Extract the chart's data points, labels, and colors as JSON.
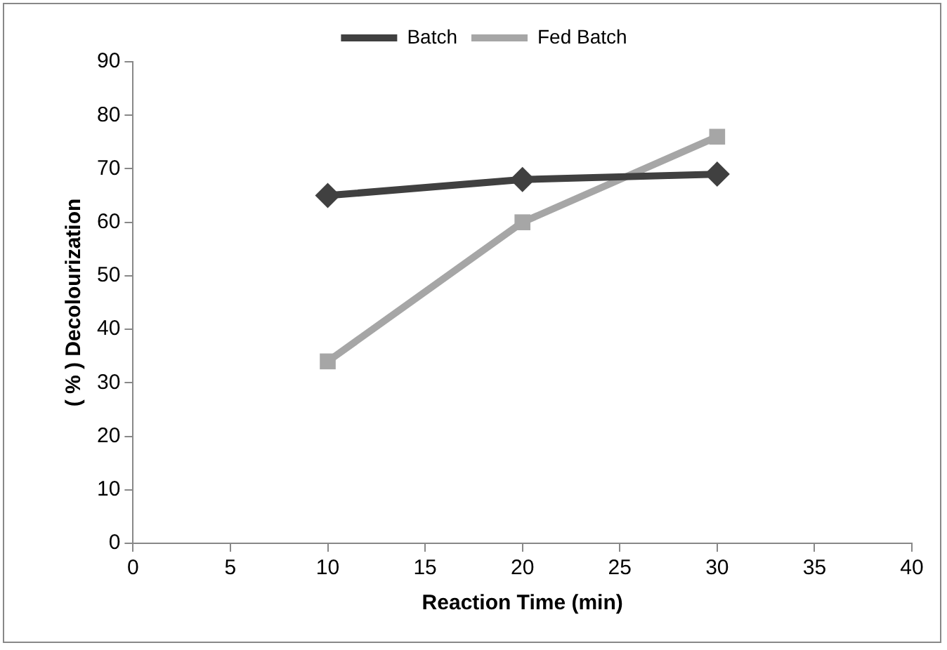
{
  "chart_data": {
    "type": "line",
    "xlabel": "Reaction Time (min)",
    "ylabel": "( % ) Decolourization",
    "x": [
      10,
      20,
      30
    ],
    "series": [
      {
        "name": "Batch",
        "color": "#404040",
        "marker": "diamond",
        "values": [
          65,
          68,
          69
        ]
      },
      {
        "name": "Fed Batch",
        "color": "#a6a6a6",
        "marker": "square",
        "values": [
          34,
          60,
          76
        ]
      }
    ],
    "xlim": [
      0,
      40
    ],
    "xticks": [
      0,
      5,
      10,
      15,
      20,
      25,
      30,
      35,
      40
    ],
    "ylim": [
      0,
      90
    ],
    "yticks": [
      0,
      10,
      20,
      30,
      40,
      50,
      60,
      70,
      80,
      90
    ],
    "grid": false,
    "legend": "top"
  }
}
